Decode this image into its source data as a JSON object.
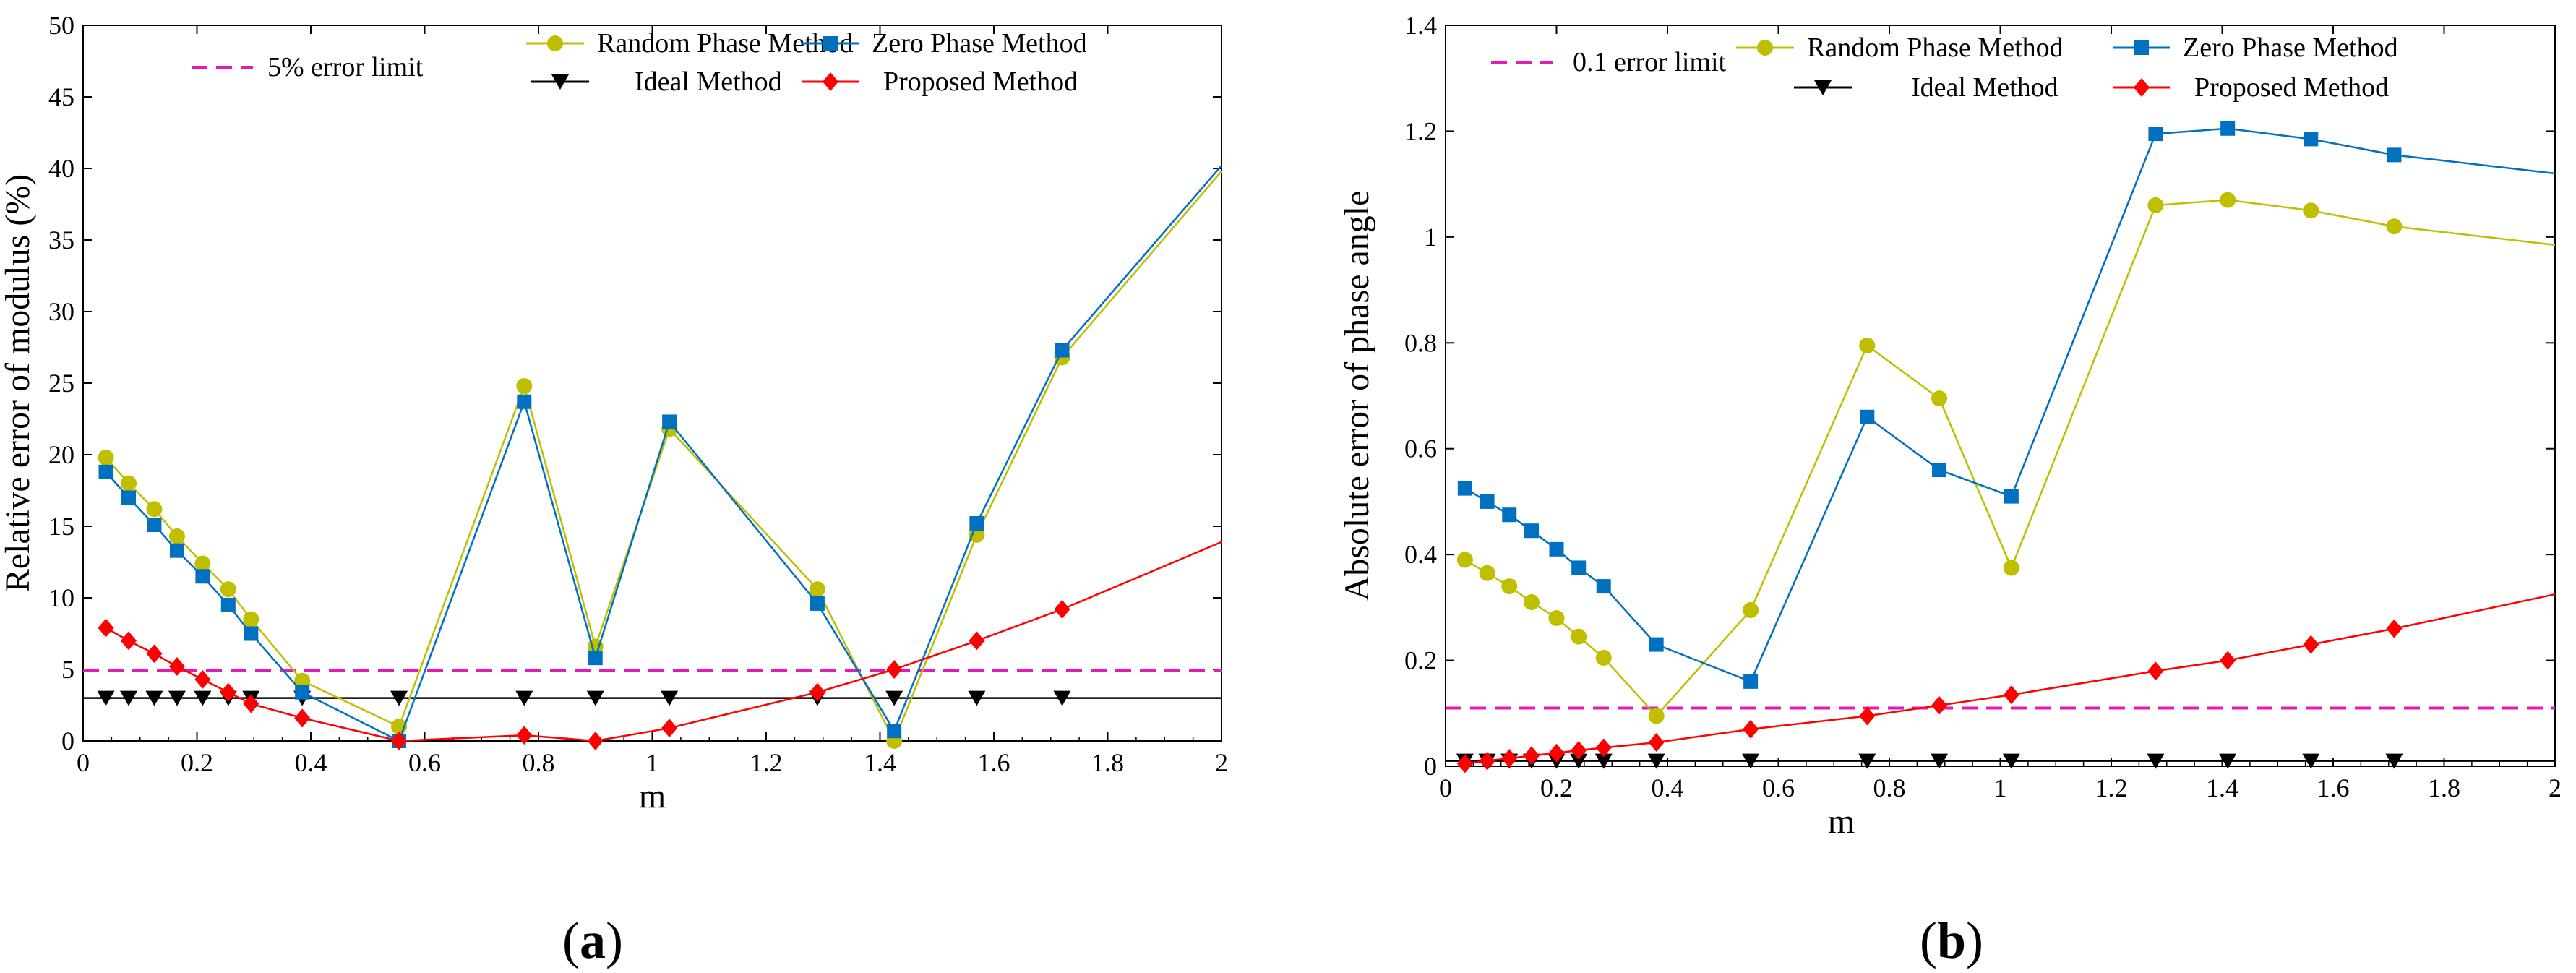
{
  "figure": {
    "panels": [
      {
        "open": "(",
        "letter": "a",
        "close": ")"
      },
      {
        "open": "(",
        "letter": "b",
        "close": ")"
      }
    ]
  },
  "chart_data": [
    {
      "type": "line",
      "title": "",
      "xlabel": "m",
      "ylabel": "Relative error of modulus (%)",
      "xlim": [
        0,
        2
      ],
      "ylim": [
        0,
        50
      ],
      "xticks": [
        0,
        0.2,
        0.4,
        0.6,
        0.8,
        1,
        1.2,
        1.4,
        1.6,
        1.8,
        2
      ],
      "xtick_labels": [
        "0",
        "0.2",
        "0.4",
        "0.6",
        "0.8",
        "1",
        "1.2",
        "1.4",
        "1.6",
        "1.8",
        "2"
      ],
      "yticks": [
        0,
        5,
        10,
        15,
        20,
        25,
        30,
        35,
        40,
        45,
        50
      ],
      "ytick_labels": [
        "0",
        "5",
        "10",
        "15",
        "20",
        "25",
        "30",
        "35",
        "40",
        "45",
        "50"
      ],
      "legend_position": "top",
      "series": [
        {
          "name": "5% error limit",
          "style": "dashed",
          "marker": "none",
          "color": "#e619b8",
          "x": [
            0,
            2
          ],
          "y": [
            4.9,
            4.9
          ]
        },
        {
          "name": "Ideal Method",
          "style": "solid",
          "marker": "triangle-down",
          "color": "#000000",
          "x": [
            0,
            2
          ],
          "y": [
            3.0,
            3.0
          ],
          "marker_x": [
            0.04,
            0.08,
            0.125,
            0.165,
            0.21,
            0.255,
            0.295,
            0.385,
            0.555,
            0.775,
            0.9,
            1.03,
            1.29,
            1.425,
            1.57,
            1.72
          ],
          "marker_y": [
            3.0,
            3.0,
            3.0,
            3.0,
            3.0,
            3.0,
            3.0,
            3.0,
            3.0,
            3.0,
            3.0,
            3.0,
            3.0,
            3.0,
            3.0,
            3.0
          ]
        },
        {
          "name": "Random Phase Method",
          "style": "solid",
          "marker": "circle",
          "color": "#bfbf00",
          "x": [
            0.04,
            0.08,
            0.125,
            0.165,
            0.21,
            0.255,
            0.295,
            0.385,
            0.555,
            0.775,
            0.9,
            1.03,
            1.29,
            1.425,
            1.57,
            1.72,
            2.0
          ],
          "y": [
            19.8,
            18.0,
            16.2,
            14.3,
            12.4,
            10.6,
            8.5,
            4.2,
            1.0,
            24.8,
            6.6,
            21.8,
            10.6,
            0.0,
            14.4,
            26.8,
            39.8
          ],
          "marker_count": 16
        },
        {
          "name": "Zero Phase Method",
          "style": "solid",
          "marker": "square",
          "color": "#0070c0",
          "x": [
            0.04,
            0.08,
            0.125,
            0.165,
            0.21,
            0.255,
            0.295,
            0.385,
            0.555,
            0.775,
            0.9,
            1.03,
            1.29,
            1.425,
            1.57,
            1.72,
            2.0
          ],
          "y": [
            18.8,
            17.0,
            15.1,
            13.3,
            11.5,
            9.5,
            7.5,
            3.4,
            0.0,
            23.7,
            5.8,
            22.3,
            9.6,
            0.7,
            15.2,
            27.3,
            40.2
          ],
          "marker_count": 16
        },
        {
          "name": "Proposed Method",
          "style": "solid",
          "marker": "diamond",
          "color": "#ff0000",
          "x": [
            0.04,
            0.08,
            0.125,
            0.165,
            0.21,
            0.255,
            0.295,
            0.385,
            0.555,
            0.775,
            0.9,
            1.03,
            1.29,
            1.425,
            1.57,
            1.72,
            2.0
          ],
          "y": [
            7.9,
            7.0,
            6.1,
            5.2,
            4.3,
            3.4,
            2.6,
            1.6,
            0.0,
            0.4,
            0.0,
            0.9,
            3.4,
            5.0,
            7.0,
            9.2,
            13.9
          ],
          "marker_count": 16
        }
      ]
    },
    {
      "type": "line",
      "title": "",
      "xlabel": "m",
      "ylabel": "Absolute error of phase angle",
      "xlim": [
        0,
        2
      ],
      "ylim": [
        0,
        1.4
      ],
      "xticks": [
        0,
        0.2,
        0.4,
        0.6,
        0.8,
        1,
        1.2,
        1.4,
        1.6,
        1.8,
        2
      ],
      "xtick_labels": [
        "0",
        "0.2",
        "0.4",
        "0.6",
        "0.8",
        "1",
        "1.2",
        "1.4",
        "1.6",
        "1.8",
        "2"
      ],
      "yticks": [
        0,
        0.2,
        0.4,
        0.6,
        0.8,
        1,
        1.2,
        1.4
      ],
      "ytick_labels": [
        "0",
        "0.2",
        "0.4",
        "0.6",
        "0.8",
        "1",
        "1.2",
        "1.4"
      ],
      "legend_position": "top",
      "series": [
        {
          "name": "0.1 error limit",
          "style": "dashed",
          "marker": "none",
          "color": "#e619b8",
          "x": [
            0,
            2
          ],
          "y": [
            0.11,
            0.11
          ]
        },
        {
          "name": "Ideal Method",
          "style": "solid",
          "marker": "triangle-down",
          "color": "#000000",
          "x": [
            0,
            2
          ],
          "y": [
            0.01,
            0.01
          ],
          "marker_x": [
            0.035,
            0.075,
            0.115,
            0.155,
            0.2,
            0.24,
            0.285,
            0.38,
            0.55,
            0.76,
            0.89,
            1.02,
            1.28,
            1.41,
            1.56,
            1.71
          ],
          "marker_y": [
            0.01,
            0.01,
            0.01,
            0.01,
            0.01,
            0.01,
            0.01,
            0.01,
            0.01,
            0.01,
            0.01,
            0.01,
            0.01,
            0.01,
            0.01,
            0.01
          ]
        },
        {
          "name": "Random Phase Method",
          "style": "solid",
          "marker": "circle",
          "color": "#bfbf00",
          "x": [
            0.035,
            0.075,
            0.115,
            0.155,
            0.2,
            0.24,
            0.285,
            0.38,
            0.55,
            0.76,
            0.89,
            1.02,
            1.28,
            1.41,
            1.56,
            1.71,
            2.0
          ],
          "y": [
            0.39,
            0.365,
            0.34,
            0.31,
            0.28,
            0.245,
            0.205,
            0.095,
            0.295,
            0.795,
            0.695,
            0.375,
            1.06,
            1.07,
            1.05,
            1.02,
            0.985
          ],
          "marker_count": 16
        },
        {
          "name": "Zero Phase Method",
          "style": "solid",
          "marker": "square",
          "color": "#0070c0",
          "x": [
            0.035,
            0.075,
            0.115,
            0.155,
            0.2,
            0.24,
            0.285,
            0.38,
            0.55,
            0.76,
            0.89,
            1.02,
            1.28,
            1.41,
            1.56,
            1.71,
            2.0
          ],
          "y": [
            0.525,
            0.5,
            0.475,
            0.445,
            0.41,
            0.375,
            0.34,
            0.23,
            0.16,
            0.66,
            0.56,
            0.51,
            1.195,
            1.205,
            1.185,
            1.155,
            1.12
          ],
          "marker_count": 16
        },
        {
          "name": "Proposed Method",
          "style": "solid",
          "marker": "diamond",
          "color": "#ff0000",
          "x": [
            0.035,
            0.075,
            0.115,
            0.155,
            0.2,
            0.24,
            0.285,
            0.38,
            0.55,
            0.76,
            0.89,
            1.02,
            1.28,
            1.41,
            1.56,
            1.71,
            2.0
          ],
          "y": [
            0.005,
            0.01,
            0.015,
            0.02,
            0.025,
            0.03,
            0.035,
            0.045,
            0.07,
            0.095,
            0.115,
            0.135,
            0.18,
            0.2,
            0.23,
            0.26,
            0.325
          ],
          "marker_count": 16
        }
      ]
    }
  ]
}
